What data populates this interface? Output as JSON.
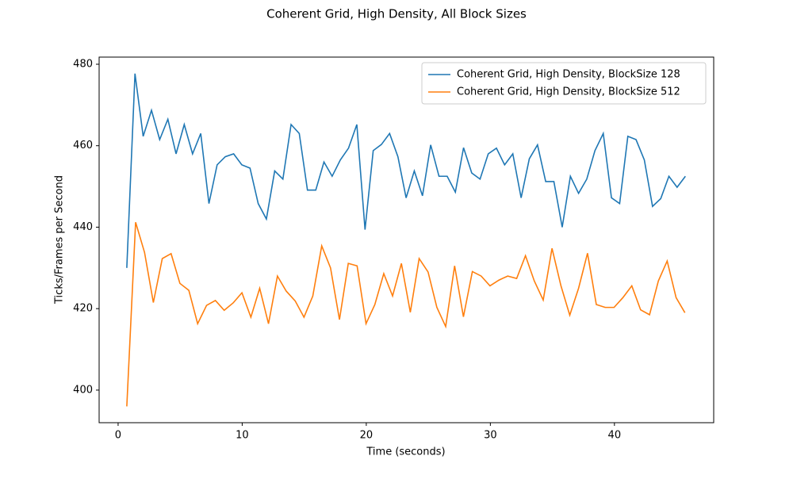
{
  "chart_data": {
    "type": "line",
    "title": "Coherent Grid, High Density, All Block Sizes",
    "x_label": "Time (seconds)",
    "y_label": "Ticks/Frames per Second",
    "xlim": [
      -1.53,
      48.0
    ],
    "ylim": [
      392.0,
      481.75
    ],
    "xticks": [
      0,
      10,
      20,
      30,
      40
    ],
    "yticks": [
      400,
      420,
      440,
      460,
      480
    ],
    "grid": false,
    "legend": "upper right",
    "series": [
      {
        "name": "Coherent Grid, High Density, BlockSize 128",
        "color": "#1f77b4",
        "x": [
          0.7,
          1.36,
          2.02,
          2.69,
          3.35,
          4.01,
          4.67,
          5.33,
          6.0,
          6.66,
          7.32,
          7.98,
          8.64,
          9.31,
          9.97,
          10.63,
          11.29,
          11.95,
          12.62,
          13.28,
          13.94,
          14.6,
          15.26,
          15.93,
          16.59,
          17.25,
          17.91,
          18.57,
          19.24,
          19.9,
          20.56,
          21.22,
          21.88,
          22.55,
          23.21,
          23.87,
          24.53,
          25.19,
          25.86,
          26.52,
          27.18,
          27.84,
          28.5,
          29.17,
          29.83,
          30.49,
          31.15,
          31.81,
          32.48,
          33.14,
          33.8,
          34.46,
          35.12,
          35.79,
          36.45,
          37.11,
          37.77,
          38.43,
          39.1,
          39.76,
          40.42,
          41.08,
          41.74,
          42.41,
          43.07,
          43.73,
          44.39,
          45.05,
          45.72
        ],
        "values": [
          430,
          477.7,
          462.3,
          468.7,
          461.5,
          466.5,
          458,
          465.2,
          458,
          463,
          445.8,
          455.3,
          457.3,
          458,
          455.3,
          454.5,
          445.8,
          442,
          453.8,
          451.8,
          465.2,
          463,
          449.1,
          449.1,
          456,
          452.5,
          456.5,
          459.4,
          465.2,
          439.4,
          458.8,
          460.3,
          463,
          457.3,
          447.2,
          453.8,
          447.7,
          460.2,
          452.5,
          452.5,
          448.6,
          459.5,
          453.3,
          451.8,
          458,
          459.4,
          455.3,
          458,
          447.2,
          456.8,
          460.2,
          451.2,
          451.2,
          440,
          452.5,
          448.3,
          451.8,
          458.8,
          463,
          447.2,
          445.8,
          462.3,
          461.5,
          456.5,
          445.1,
          447,
          452.5,
          449.8,
          452.5
        ]
      },
      {
        "name": "Coherent Grid, High Density, BlockSize 512",
        "color": "#ff7f0e",
        "x": [
          0.7,
          1.41,
          2.13,
          2.84,
          3.56,
          4.27,
          4.98,
          5.7,
          6.41,
          7.13,
          7.84,
          8.55,
          9.27,
          9.98,
          10.7,
          11.41,
          12.12,
          12.84,
          13.55,
          14.27,
          14.98,
          15.69,
          16.41,
          17.12,
          17.84,
          18.55,
          19.26,
          19.98,
          20.69,
          21.41,
          22.12,
          22.83,
          23.55,
          24.26,
          24.98,
          25.69,
          26.4,
          27.12,
          27.83,
          28.55,
          29.26,
          29.97,
          30.69,
          31.4,
          32.12,
          32.83,
          33.54,
          34.26,
          34.97,
          35.69,
          36.4,
          37.11,
          37.83,
          38.54,
          39.26,
          39.97,
          40.68,
          41.4,
          42.11,
          42.83,
          43.54,
          44.25,
          44.97,
          45.68
        ],
        "values": [
          396,
          441.2,
          433.8,
          421.5,
          432.3,
          433.5,
          426.2,
          424.5,
          416.3,
          420.8,
          422,
          419.6,
          421.4,
          423.9,
          417.9,
          425,
          416.3,
          428,
          424.3,
          421.9,
          417.9,
          423.1,
          435.4,
          430,
          417.3,
          431.1,
          430.5,
          416.3,
          421,
          428.6,
          423.1,
          431.1,
          419.1,
          432.3,
          429,
          420.3,
          415.6,
          430.5,
          418,
          429.1,
          428,
          425.6,
          427,
          428,
          427.4,
          433,
          426.8,
          422.1,
          434.8,
          425.6,
          418.4,
          425,
          433.6,
          421,
          420.3,
          420.3,
          422.7,
          425.6,
          419.7,
          418.5,
          426.8,
          431.7,
          422.7,
          419
        ]
      }
    ]
  }
}
